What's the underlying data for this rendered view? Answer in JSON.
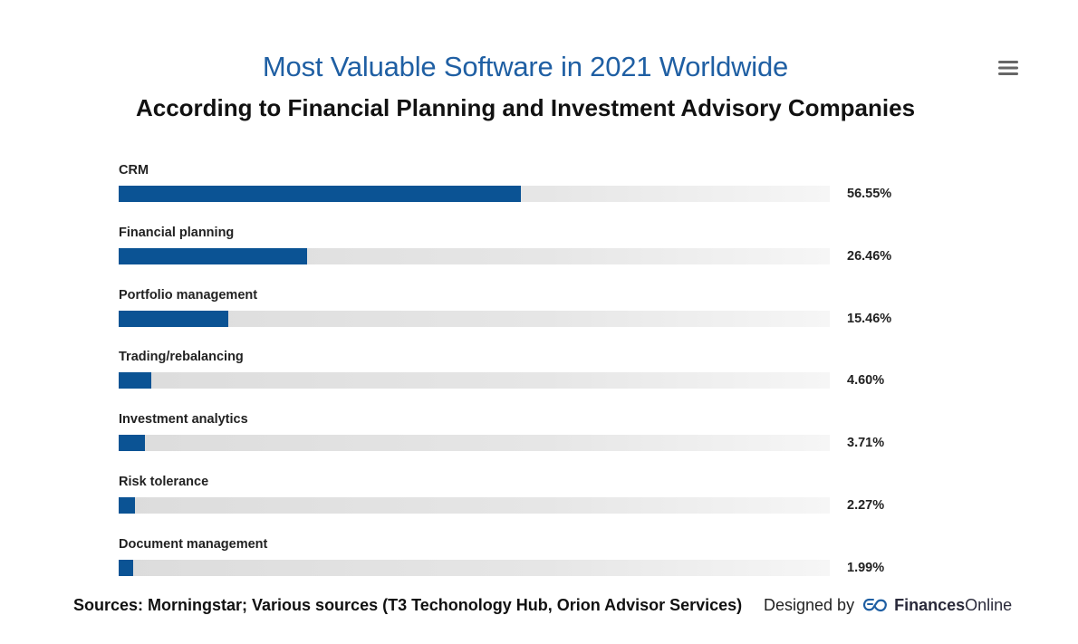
{
  "header": {
    "title": "Most Valuable Software in 2021 Worldwide",
    "subtitle": "According to Financial Planning and Investment Advisory Companies",
    "menu_icon": "hamburger-menu-icon"
  },
  "colors": {
    "title": "#1f5fa3",
    "bar": "#0b5394",
    "track": "#e3e3e3"
  },
  "chart_data": {
    "type": "bar",
    "orientation": "horizontal",
    "title": "Most Valuable Software in 2021 Worldwide",
    "subtitle": "According to Financial Planning and Investment Advisory Companies",
    "categories": [
      "CRM",
      "Financial planning",
      "Portfolio management",
      "Trading/rebalancing",
      "Investment analytics",
      "Risk tolerance",
      "Document management"
    ],
    "values": [
      56.55,
      26.46,
      15.46,
      4.6,
      3.71,
      2.27,
      1.99
    ],
    "value_labels": [
      "56.55%",
      "26.46%",
      "15.46%",
      "4.60%",
      "3.71%",
      "2.27%",
      "1.99%"
    ],
    "xlim": [
      0,
      100
    ],
    "unit": "%",
    "grid": false,
    "legend": "none"
  },
  "footer": {
    "source": "Sources: Morningstar; Various sources (T3 Techonology Hub, Orion Advisor Services)",
    "designed_by": "Designed by",
    "brand_part1": "Finances",
    "brand_part2": "Online",
    "brand_icon": "financesonline-logo-icon"
  }
}
